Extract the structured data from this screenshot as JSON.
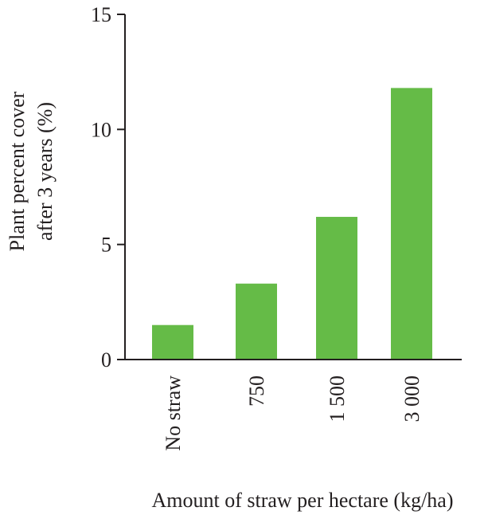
{
  "chart_data": {
    "type": "bar",
    "categories": [
      "No straw",
      "750",
      "1 500",
      "3 000"
    ],
    "values": [
      1.5,
      3.3,
      6.2,
      11.8
    ],
    "ylim": [
      0,
      15
    ],
    "yticks": [
      0,
      5,
      10,
      15
    ],
    "xlabel": "Amount of straw per hectare (kg/ha)",
    "ylabel_lines": [
      "Plant percent cover",
      "after 3 years (%)"
    ],
    "bar_color": "#65bb47",
    "grid": false,
    "legend": "none"
  }
}
